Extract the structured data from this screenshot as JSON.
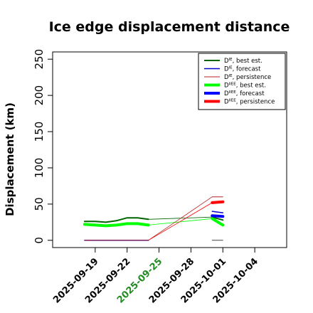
{
  "chart_data": {
    "type": "line",
    "title": "Ice edge displacement distance",
    "ylabel": "Displacement (km)",
    "xlabel": "",
    "ylim": [
      -10,
      260
    ],
    "yticks": [
      0,
      50,
      100,
      150,
      200,
      250
    ],
    "xlim": [
      "2025-09-15",
      "2025-10-07"
    ],
    "xticks": [
      "2025-09-19",
      "2025-09-22",
      "2025-09-25",
      "2025-09-28",
      "2025-10-01",
      "2025-10-04"
    ],
    "highlighted_xtick": "2025-09-25",
    "highlight_color": "#228B22",
    "grid": false,
    "legend_position": "top-right",
    "series": [
      {
        "key": "die_best",
        "name": "D^IE, best est.",
        "base": "D",
        "sup": "IE",
        "suffix": ", best est.",
        "color": "#006400",
        "width": 2,
        "x": [
          "2025-09-18",
          "2025-09-19",
          "2025-09-20",
          "2025-09-21",
          "2025-09-22",
          "2025-09-23",
          "2025-09-24"
        ],
        "y": [
          26,
          26,
          25,
          27,
          31,
          31,
          29
        ]
      },
      {
        "key": "die_forecast",
        "name": "D^IE, forecast",
        "base": "D",
        "sup": "IE",
        "suffix": ", forecast",
        "color": "#0000CD",
        "width": 1.5,
        "x": [
          "2025-09-18",
          "2025-09-19",
          "2025-09-20",
          "2025-09-21",
          "2025-09-22",
          "2025-09-23",
          "2025-09-24"
        ],
        "y": [
          0,
          0,
          0,
          0,
          0,
          0,
          0
        ]
      },
      {
        "key": "die_persist",
        "name": "D^IE, persistence",
        "base": "D",
        "sup": "IE",
        "suffix": ", persistence",
        "color": "#B22222",
        "width": 1,
        "x": [
          "2025-09-18",
          "2025-09-19",
          "2025-09-20",
          "2025-09-21",
          "2025-09-22",
          "2025-09-23",
          "2025-09-24"
        ],
        "y": [
          0,
          0,
          0,
          0,
          0,
          0,
          0
        ]
      },
      {
        "key": "diiee_best",
        "name": "D^IIEE, best est.",
        "base": "D",
        "sup": "IIEE",
        "suffix": ", best est.",
        "color": "#00FF00",
        "width": 4,
        "x": [
          "2025-09-18",
          "2025-09-19",
          "2025-09-20",
          "2025-09-21",
          "2025-09-22",
          "2025-09-23",
          "2025-09-24"
        ],
        "y": [
          22,
          21,
          20,
          21,
          23,
          23,
          21
        ]
      },
      {
        "key": "diiee_forecast",
        "name": "D^IIEE, forecast",
        "base": "D",
        "sup": "IIEE",
        "suffix": ", forecast",
        "color": "#0000FF",
        "width": 4,
        "x": [],
        "y": []
      },
      {
        "key": "diiee_persist",
        "name": "D^IIEE, persistence",
        "base": "D",
        "sup": "IIEE",
        "suffix": ", persistence",
        "color": "#FF0000",
        "width": 4,
        "x": [],
        "y": []
      }
    ],
    "forecast_segments": [
      {
        "series": "die_best",
        "x": [
          "2025-09-30",
          "2025-10-01"
        ],
        "y": [
          32,
          28
        ]
      },
      {
        "series": "die_forecast",
        "x": [
          "2025-09-30",
          "2025-10-01"
        ],
        "y": [
          40,
          38
        ]
      },
      {
        "series": "die_persist",
        "x": [
          "2025-09-30",
          "2025-10-01"
        ],
        "y": [
          60,
          60
        ]
      },
      {
        "series": "die_persist",
        "x": [
          "2025-09-30",
          "2025-10-01"
        ],
        "y": [
          0,
          0
        ],
        "color": "#444444",
        "width": 1
      },
      {
        "series": "diiee_best",
        "x": [
          "2025-09-30",
          "2025-10-01"
        ],
        "y": [
          30,
          21
        ]
      },
      {
        "series": "diiee_forecast",
        "x": [
          "2025-09-30",
          "2025-10-01"
        ],
        "y": [
          34,
          33
        ]
      },
      {
        "series": "diiee_persist",
        "x": [
          "2025-09-30",
          "2025-10-01"
        ],
        "y": [
          52,
          53
        ]
      }
    ],
    "connectors": [
      {
        "series": "die_best",
        "x": [
          "2025-09-24",
          "2025-09-30"
        ],
        "y": [
          29,
          32
        ]
      },
      {
        "series": "diiee_best",
        "x": [
          "2025-09-24",
          "2025-09-30"
        ],
        "y": [
          21,
          30
        ]
      },
      {
        "series": "die_persist",
        "x": [
          "2025-09-24",
          "2025-09-30"
        ],
        "y": [
          0,
          60
        ]
      },
      {
        "series": "diiee_persist",
        "x": [
          "2025-09-24",
          "2025-09-30"
        ],
        "y": [
          0,
          52
        ]
      }
    ]
  }
}
